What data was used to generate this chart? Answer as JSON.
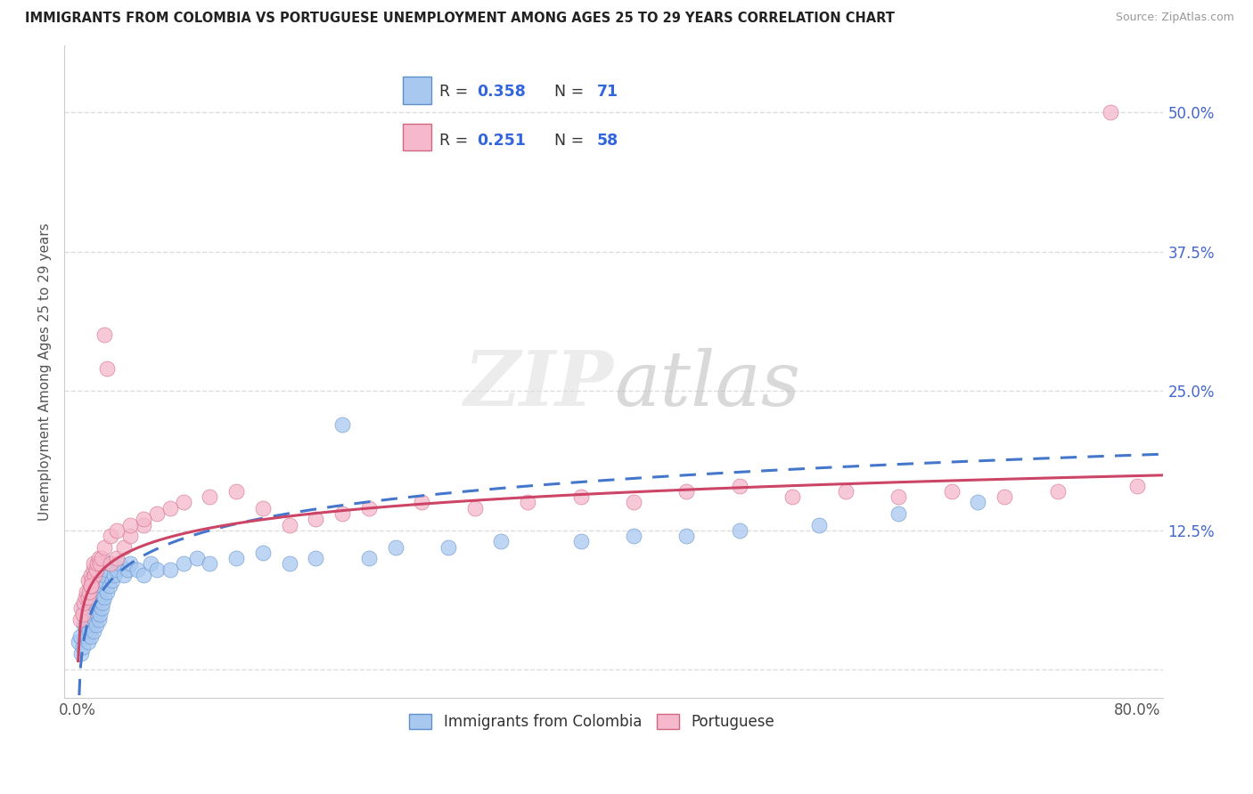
{
  "title": "IMMIGRANTS FROM COLOMBIA VS PORTUGUESE UNEMPLOYMENT AMONG AGES 25 TO 29 YEARS CORRELATION CHART",
  "source": "Source: ZipAtlas.com",
  "ylabel": "Unemployment Among Ages 25 to 29 years",
  "xlim": [
    -0.01,
    0.82
  ],
  "ylim": [
    -0.025,
    0.56
  ],
  "xticks": [
    0.0,
    0.2,
    0.4,
    0.6,
    0.8
  ],
  "xtick_labels": [
    "0.0%",
    "",
    "",
    "",
    "80.0%"
  ],
  "yticks": [
    0.0,
    0.125,
    0.25,
    0.375,
    0.5
  ],
  "ytick_labels_right": [
    "",
    "12.5%",
    "25.0%",
    "37.5%",
    "50.0%"
  ],
  "series1_color": "#A8C8F0",
  "series1_edge": "#6090C8",
  "series2_color": "#F5B8CC",
  "series2_edge": "#D06880",
  "trend1_color": "#4477CC",
  "trend2_color": "#CC4466",
  "R1": 0.358,
  "N1": 71,
  "R2": 0.251,
  "N2": 58,
  "legend_labels": [
    "Immigrants from Colombia",
    "Portuguese"
  ],
  "series1_x": [
    0.001,
    0.002,
    0.003,
    0.004,
    0.005,
    0.005,
    0.006,
    0.006,
    0.007,
    0.007,
    0.008,
    0.008,
    0.009,
    0.009,
    0.01,
    0.01,
    0.011,
    0.011,
    0.012,
    0.012,
    0.013,
    0.013,
    0.014,
    0.014,
    0.015,
    0.015,
    0.016,
    0.016,
    0.017,
    0.017,
    0.018,
    0.018,
    0.019,
    0.019,
    0.02,
    0.02,
    0.022,
    0.022,
    0.024,
    0.024,
    0.026,
    0.028,
    0.03,
    0.032,
    0.035,
    0.038,
    0.04,
    0.045,
    0.05,
    0.055,
    0.06,
    0.07,
    0.08,
    0.09,
    0.1,
    0.12,
    0.14,
    0.16,
    0.18,
    0.2,
    0.22,
    0.24,
    0.28,
    0.32,
    0.38,
    0.42,
    0.46,
    0.5,
    0.56,
    0.62,
    0.68
  ],
  "series1_y": [
    0.025,
    0.03,
    0.015,
    0.02,
    0.04,
    0.055,
    0.035,
    0.045,
    0.03,
    0.05,
    0.025,
    0.045,
    0.035,
    0.05,
    0.03,
    0.045,
    0.04,
    0.06,
    0.035,
    0.055,
    0.045,
    0.065,
    0.04,
    0.06,
    0.05,
    0.07,
    0.045,
    0.065,
    0.05,
    0.07,
    0.055,
    0.075,
    0.06,
    0.08,
    0.065,
    0.085,
    0.07,
    0.09,
    0.075,
    0.095,
    0.08,
    0.085,
    0.09,
    0.095,
    0.085,
    0.09,
    0.095,
    0.09,
    0.085,
    0.095,
    0.09,
    0.09,
    0.095,
    0.1,
    0.095,
    0.1,
    0.105,
    0.095,
    0.1,
    0.22,
    0.1,
    0.11,
    0.11,
    0.115,
    0.115,
    0.12,
    0.12,
    0.125,
    0.13,
    0.14,
    0.15
  ],
  "series2_x": [
    0.002,
    0.003,
    0.004,
    0.005,
    0.006,
    0.007,
    0.008,
    0.008,
    0.009,
    0.01,
    0.01,
    0.011,
    0.012,
    0.012,
    0.013,
    0.014,
    0.015,
    0.016,
    0.017,
    0.018,
    0.02,
    0.022,
    0.025,
    0.03,
    0.035,
    0.04,
    0.05,
    0.06,
    0.07,
    0.08,
    0.1,
    0.12,
    0.14,
    0.16,
    0.18,
    0.2,
    0.22,
    0.26,
    0.3,
    0.34,
    0.38,
    0.42,
    0.46,
    0.5,
    0.54,
    0.58,
    0.62,
    0.66,
    0.7,
    0.74,
    0.78,
    0.8,
    0.01,
    0.02,
    0.025,
    0.03,
    0.04,
    0.05
  ],
  "series2_y": [
    0.045,
    0.055,
    0.05,
    0.06,
    0.065,
    0.07,
    0.065,
    0.08,
    0.07,
    0.075,
    0.085,
    0.08,
    0.09,
    0.095,
    0.085,
    0.09,
    0.095,
    0.1,
    0.095,
    0.1,
    0.3,
    0.27,
    0.095,
    0.1,
    0.11,
    0.12,
    0.13,
    0.14,
    0.145,
    0.15,
    0.155,
    0.16,
    0.145,
    0.13,
    0.135,
    0.14,
    0.145,
    0.15,
    0.145,
    0.15,
    0.155,
    0.15,
    0.16,
    0.165,
    0.155,
    0.16,
    0.155,
    0.16,
    0.155,
    0.16,
    0.5,
    0.165,
    0.075,
    0.11,
    0.12,
    0.125,
    0.13,
    0.135
  ]
}
